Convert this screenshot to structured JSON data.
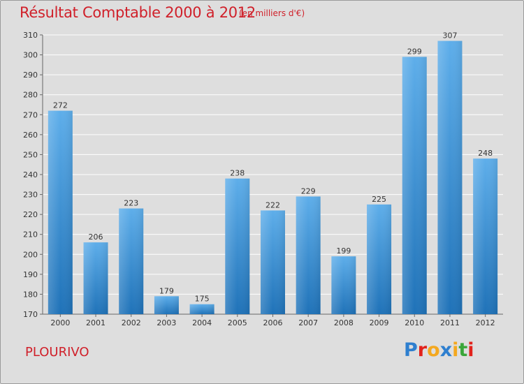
{
  "title": "Résultat Comptable 2000 à 2012",
  "subtitle": "(en milliers d'€)",
  "place_name": "PLOURIVO",
  "logo": {
    "letters": [
      "P",
      "r",
      "o",
      "x",
      "i",
      "t",
      "i"
    ],
    "colors": [
      "#2e7fcf",
      "#e2221b",
      "#f4a81f",
      "#2e7fcf",
      "#f4a81f",
      "#3aa63a",
      "#e2221b"
    ]
  },
  "colors": {
    "title": "#d0202a",
    "bar_light": "#5eaeea",
    "bar_dark": "#1f72b8",
    "background": "#dedede",
    "grid": "#ffffff"
  },
  "chart_data": {
    "type": "bar",
    "title": "Résultat Comptable 2000 à 2012",
    "unit": "(en milliers d'€)",
    "categories": [
      "2000",
      "2001",
      "2002",
      "2003",
      "2004",
      "2005",
      "2006",
      "2007",
      "2008",
      "2009",
      "2010",
      "2011",
      "2012"
    ],
    "values": [
      272,
      206,
      223,
      179,
      175,
      238,
      222,
      229,
      199,
      225,
      299,
      307,
      248
    ],
    "ylim": [
      170,
      310
    ],
    "yticks": [
      170,
      180,
      190,
      200,
      210,
      220,
      230,
      240,
      250,
      260,
      270,
      280,
      290,
      300,
      310
    ],
    "grid": true,
    "xlabel": "",
    "ylabel": ""
  }
}
